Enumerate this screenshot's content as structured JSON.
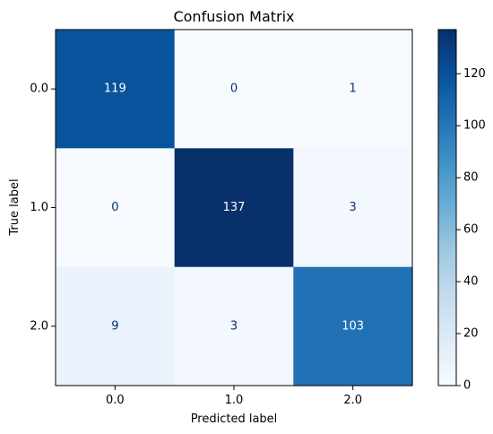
{
  "chart_data": {
    "type": "heatmap",
    "title": "Confusion Matrix",
    "xlabel": "Predicted label",
    "ylabel": "True label",
    "x_categories": [
      "0.0",
      "1.0",
      "2.0"
    ],
    "y_categories": [
      "0.0",
      "1.0",
      "2.0"
    ],
    "values": [
      [
        119,
        0,
        1
      ],
      [
        0,
        137,
        3
      ],
      [
        9,
        3,
        103
      ]
    ],
    "colormap": "Blues",
    "color_range": [
      0,
      137
    ],
    "colorbar_ticks": [
      "0",
      "20",
      "40",
      "60",
      "80",
      "100",
      "120"
    ],
    "colorbar_tick_values": [
      0,
      20,
      40,
      60,
      80,
      100,
      120
    ]
  }
}
